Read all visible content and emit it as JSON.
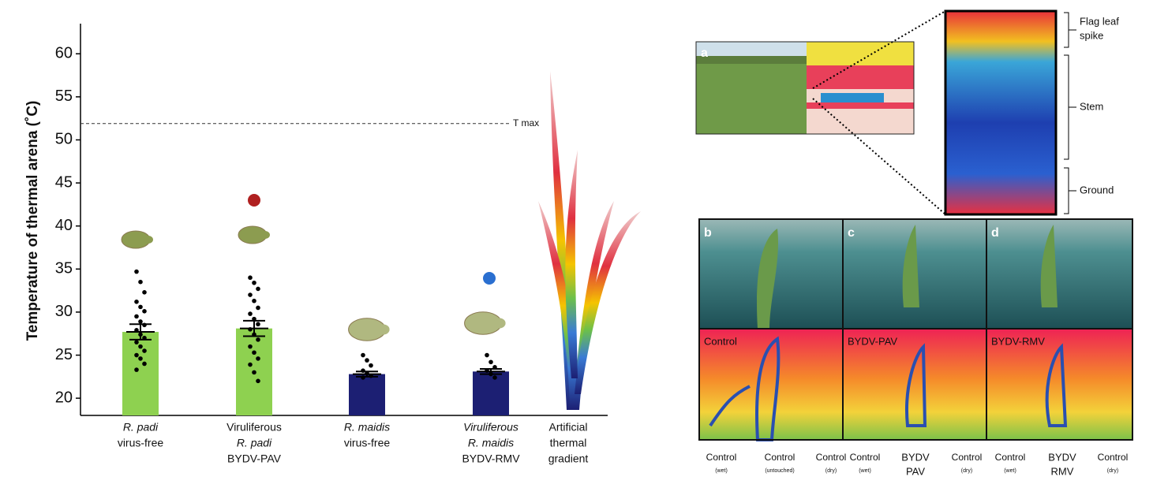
{
  "chart_data": {
    "type": "bar",
    "ylabel": "Temperature of thermal  arena (˚C)",
    "categories": [
      [
        "R. padi",
        "virus-free"
      ],
      [
        "Viruliferous",
        "R. padi",
        "BYDV-PAV"
      ],
      [
        "R. maidis",
        "virus-free"
      ],
      [
        "Viruliferous",
        "R. maidis",
        "BYDV-RMV"
      ],
      [
        "Artificial",
        "thermal",
        "gradient"
      ]
    ],
    "values": [
      27.7,
      28.1,
      22.8,
      23.1,
      null
    ],
    "errors": [
      0.9,
      0.9,
      0.3,
      0.3,
      null
    ],
    "colors": [
      "#8ed150",
      "#8ed150",
      "#1c1f73",
      "#1c1f73",
      null
    ],
    "points": [
      [
        34.7,
        33.5,
        32.3,
        31.2,
        30.6,
        30.1,
        29.5,
        28.9,
        28.5,
        27.9,
        27.4,
        27.0,
        26.5,
        26.0,
        25.5,
        25.0,
        24.6,
        24.0,
        23.3
      ],
      [
        34.0,
        33.4,
        32.7,
        32.0,
        31.3,
        30.5,
        29.8,
        29.2,
        28.6,
        28.0,
        27.4,
        26.8,
        26.0,
        25.3,
        24.6,
        23.9,
        23.0,
        22.0
      ],
      [
        25.0,
        24.4,
        23.8,
        23.2,
        22.9,
        22.6,
        22.4
      ],
      [
        25.0,
        24.2,
        23.6,
        23.2,
        22.8,
        22.4
      ],
      []
    ],
    "threshold": {
      "value": 51.9,
      "label": "T max"
    },
    "ylim": [
      18,
      63.5
    ],
    "yticks": [
      20,
      25,
      30,
      35,
      40,
      45,
      50,
      55,
      60
    ]
  },
  "photos": {
    "letters": [
      "a",
      "b",
      "c",
      "d"
    ],
    "zoom_labels": [
      [
        "Flag leaf",
        "spike"
      ],
      [
        "Stem"
      ],
      [
        "Ground"
      ]
    ],
    "thermal_labels": [
      "Control",
      "BYDV-PAV",
      "BYDV-RMV"
    ],
    "bottom_labels": [
      {
        "lines": [
          "Control"
        ],
        "note": "(wet)"
      },
      {
        "lines": [
          "Control"
        ],
        "note": "(untouched)"
      },
      {
        "lines": [
          "Control"
        ],
        "note": "(dry)"
      },
      {
        "lines": [
          "Control"
        ],
        "note": "(wet)"
      },
      {
        "lines": [
          "BYDV",
          "PAV"
        ]
      },
      {
        "lines": [
          "Control"
        ],
        "note": "(dry)"
      },
      {
        "lines": [
          "Control"
        ],
        "note": "(wet)"
      },
      {
        "lines": [
          "BYDV",
          "RMV"
        ]
      },
      {
        "lines": [
          "Control"
        ],
        "note": "(dry)"
      }
    ]
  }
}
